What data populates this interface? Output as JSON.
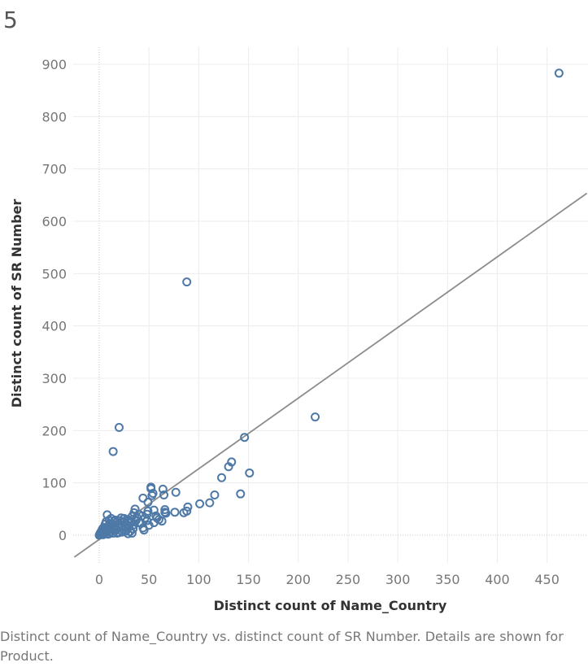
{
  "header": {
    "title": "5"
  },
  "caption": "Distinct count of Name_Country vs. distinct count of SR Number.  Details are shown for Product.",
  "colors": {
    "marker": "#4e79a7",
    "trend": "#8c8c8c",
    "grid": "#ececec",
    "zero_line": "#c8c8c8"
  },
  "chart_data": {
    "type": "scatter",
    "xlabel": "Distinct count of Name_Country",
    "ylabel": "Distinct count of SR Number",
    "xlim": [
      -25,
      490
    ],
    "ylim": [
      -50,
      935
    ],
    "x_ticks": [
      0,
      50,
      100,
      150,
      200,
      250,
      300,
      350,
      400,
      450
    ],
    "y_ticks": [
      0,
      100,
      200,
      300,
      400,
      500,
      600,
      700,
      800,
      900
    ],
    "grid": true,
    "marker": "open-circle",
    "trendline": {
      "slope": 1.35,
      "intercept": -8
    },
    "points": [
      [
        462,
        883
      ],
      [
        88,
        484
      ],
      [
        20,
        206
      ],
      [
        14,
        160
      ],
      [
        217,
        226
      ],
      [
        146,
        187
      ],
      [
        133,
        140
      ],
      [
        130,
        131
      ],
      [
        123,
        110
      ],
      [
        151,
        119
      ],
      [
        142,
        79
      ],
      [
        116,
        77
      ],
      [
        111,
        62
      ],
      [
        101,
        60
      ],
      [
        89,
        54
      ],
      [
        88,
        46
      ],
      [
        85,
        43
      ],
      [
        77,
        82
      ],
      [
        76,
        44
      ],
      [
        66,
        49
      ],
      [
        67,
        42
      ],
      [
        64,
        88
      ],
      [
        65,
        77
      ],
      [
        63,
        27
      ],
      [
        58,
        33
      ],
      [
        55,
        48
      ],
      [
        54,
        80
      ],
      [
        52,
        92
      ],
      [
        52,
        89
      ],
      [
        53,
        76
      ],
      [
        49,
        63
      ],
      [
        49,
        46
      ],
      [
        50,
        19
      ],
      [
        48,
        40
      ],
      [
        46,
        33
      ],
      [
        44,
        71
      ],
      [
        42,
        23
      ],
      [
        44,
        14
      ],
      [
        36,
        50
      ],
      [
        38,
        34
      ],
      [
        35,
        20
      ],
      [
        33,
        36
      ],
      [
        30,
        16
      ],
      [
        31,
        7
      ],
      [
        29,
        30
      ],
      [
        28,
        20
      ],
      [
        26,
        27
      ],
      [
        24,
        11
      ],
      [
        25,
        32
      ],
      [
        22,
        33
      ],
      [
        22,
        16
      ],
      [
        20,
        5
      ],
      [
        18,
        25
      ],
      [
        16,
        19
      ],
      [
        15,
        12
      ],
      [
        12,
        32
      ],
      [
        13,
        22
      ],
      [
        11,
        6
      ],
      [
        10,
        29
      ],
      [
        9,
        17
      ],
      [
        8,
        39
      ],
      [
        7,
        12
      ],
      [
        6,
        21
      ],
      [
        5,
        4
      ],
      [
        5,
        9
      ],
      [
        4,
        14
      ],
      [
        3,
        2
      ],
      [
        2,
        7
      ],
      [
        1,
        1
      ],
      [
        2,
        3
      ],
      [
        3,
        6
      ],
      [
        0,
        0
      ],
      [
        1,
        4
      ],
      [
        4,
        1
      ],
      [
        6,
        15
      ],
      [
        8,
        8
      ],
      [
        10,
        3
      ],
      [
        12,
        14
      ],
      [
        14,
        4
      ],
      [
        16,
        29
      ],
      [
        17,
        10
      ],
      [
        19,
        14
      ],
      [
        20,
        22
      ],
      [
        23,
        6
      ],
      [
        26,
        17
      ],
      [
        27,
        8
      ],
      [
        32,
        26
      ],
      [
        34,
        12
      ],
      [
        37,
        28
      ],
      [
        40,
        24
      ],
      [
        43,
        37
      ],
      [
        45,
        10
      ],
      [
        48,
        28
      ],
      [
        55,
        24
      ],
      [
        57,
        37
      ],
      [
        60,
        30
      ],
      [
        66,
        44
      ],
      [
        29,
        3
      ],
      [
        30,
        24
      ],
      [
        35,
        43
      ],
      [
        40,
        40
      ],
      [
        11,
        11
      ],
      [
        7,
        26
      ],
      [
        9,
        2
      ],
      [
        3,
        11
      ],
      [
        15,
        27
      ],
      [
        18,
        4
      ],
      [
        21,
        28
      ],
      [
        24,
        26
      ],
      [
        33,
        4
      ],
      [
        27,
        14
      ]
    ]
  }
}
